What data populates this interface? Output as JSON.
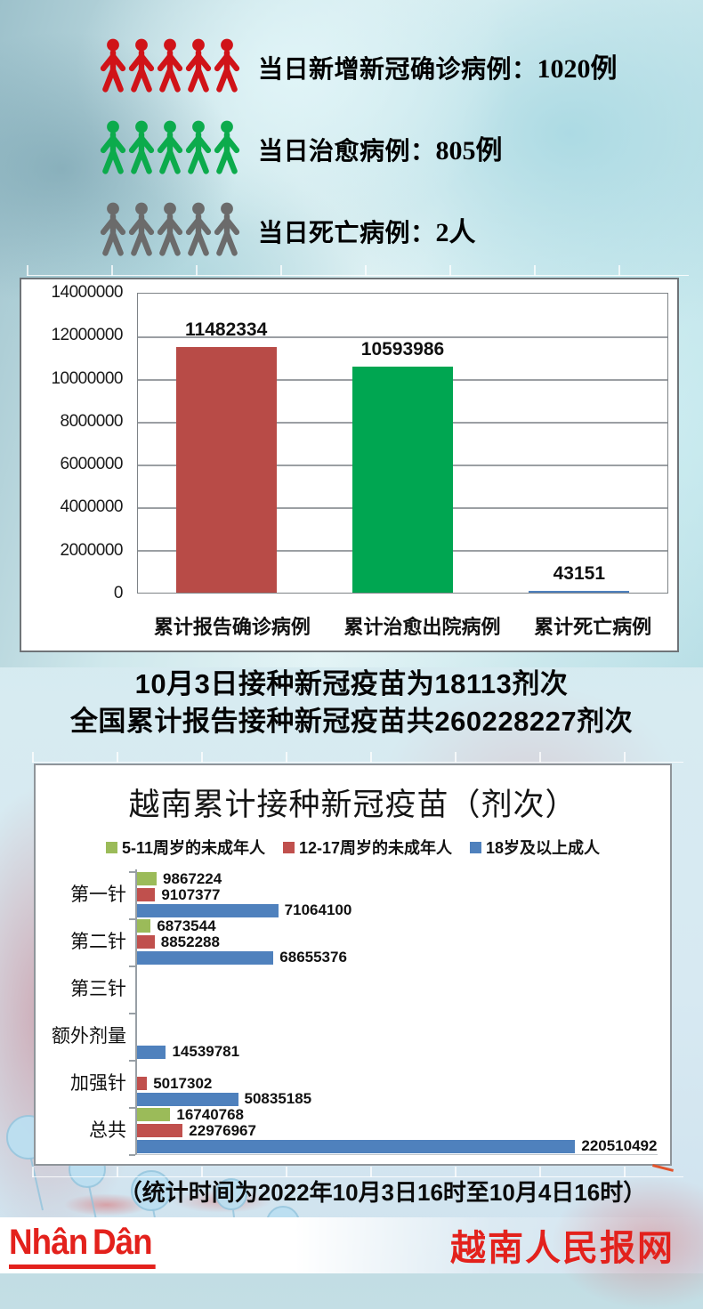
{
  "daily_stats": [
    {
      "id": "new-cases",
      "label": "当日新增新冠确诊病例：",
      "value": "1020例",
      "color": "#d01318"
    },
    {
      "id": "cured",
      "label": "当日治愈病例：",
      "value": "805例",
      "color": "#0cab4c"
    },
    {
      "id": "deaths",
      "label": "当日死亡病例：",
      "value": "2人",
      "color": "#6b6b6b"
    }
  ],
  "vaccine_heading": {
    "line1": "10月3日接种新冠疫苗为18113剂次",
    "line2": "全国累计报告接种新冠疫苗共260228227剂次"
  },
  "caption": "（统计时间为2022年10月3日16时至10月4日16时）",
  "footer": {
    "logo": "Nhân Dân",
    "site_name": "越南人民报网",
    "brand_color": "#e3211c"
  },
  "chart_data": [
    {
      "type": "bar",
      "title": "",
      "categories": [
        "累计报告确诊病例",
        "累计治愈出院病例",
        "累计死亡病例"
      ],
      "values": [
        11482334,
        10593986,
        43151
      ],
      "bar_colors": [
        "#b84b47",
        "#00a651",
        "#4f81bd"
      ],
      "ylim": [
        0,
        14000000
      ],
      "yticks": [
        0,
        2000000,
        4000000,
        6000000,
        8000000,
        10000000,
        12000000,
        14000000
      ],
      "grid": true,
      "legend_position": "none"
    },
    {
      "type": "bar-horizontal",
      "title": "越南累计接种新冠疫苗（剂次）",
      "categories": [
        "第一针",
        "第二针",
        "第三针",
        "额外剂量",
        "加强针",
        "总共"
      ],
      "series": [
        {
          "name": "5-11周岁的未成年人",
          "color": "#9bbb59",
          "values": [
            9867224,
            6873544,
            null,
            null,
            null,
            16740768
          ]
        },
        {
          "name": "12-17周岁的未成年人",
          "color": "#c0504d",
          "values": [
            9107377,
            8852288,
            null,
            null,
            5017302,
            22976967
          ]
        },
        {
          "name": "18岁及以上成人",
          "color": "#4f81bd",
          "values": [
            71064100,
            68655376,
            null,
            14539781,
            50835185,
            220510492
          ]
        }
      ],
      "xlim": [
        0,
        262000000
      ],
      "grid": false,
      "legend_position": "top"
    }
  ]
}
